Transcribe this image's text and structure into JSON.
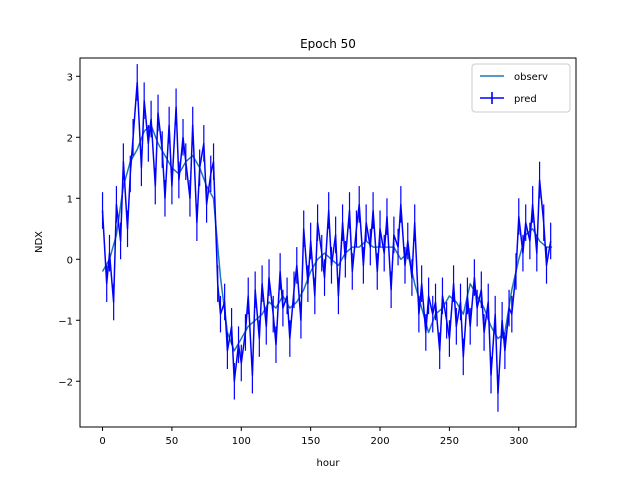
{
  "chart_data": {
    "type": "line",
    "title": "Epoch 50",
    "xlabel": "hour",
    "ylabel": "NDX",
    "xlim": [
      -16.25,
      341.25
    ],
    "ylim": [
      -2.75,
      3.3
    ],
    "xticks": [
      0,
      50,
      100,
      150,
      200,
      250,
      300
    ],
    "yticks": [
      -2,
      -1,
      0,
      1,
      2,
      3
    ],
    "ytick_labels": [
      "−2",
      "−1",
      "0",
      "1",
      "2",
      "3"
    ],
    "grid": false,
    "legend": {
      "placement": "top-right",
      "entries": [
        "observ",
        "pred"
      ]
    },
    "series": [
      {
        "name": "observ",
        "color": "#1f77b4",
        "style": "line",
        "x": [
          0,
          5,
          10,
          15,
          20,
          25,
          30,
          35,
          40,
          45,
          50,
          55,
          60,
          65,
          70,
          75,
          80,
          85,
          90,
          95,
          100,
          105,
          110,
          115,
          120,
          125,
          130,
          135,
          140,
          145,
          150,
          155,
          160,
          165,
          170,
          175,
          180,
          185,
          190,
          195,
          200,
          205,
          210,
          215,
          220,
          225,
          230,
          235,
          240,
          245,
          250,
          255,
          260,
          265,
          270,
          275,
          280,
          285,
          290,
          295,
          300,
          305,
          310,
          315,
          320,
          324
        ],
        "y": [
          -0.2,
          0.0,
          0.4,
          1.2,
          1.6,
          1.8,
          2.1,
          2.2,
          1.9,
          1.7,
          1.5,
          1.4,
          1.6,
          1.7,
          1.5,
          1.2,
          1.0,
          -0.3,
          -1.2,
          -1.5,
          -1.3,
          -1.1,
          -1.0,
          -0.9,
          -0.7,
          -0.8,
          -0.6,
          -0.8,
          -0.7,
          -0.5,
          -0.2,
          0.0,
          0.1,
          0.0,
          -0.1,
          0.1,
          0.2,
          0.2,
          0.3,
          0.2,
          0.2,
          0.2,
          0.2,
          0.0,
          0.1,
          -0.4,
          -0.8,
          -1.2,
          -0.9,
          -0.8,
          -0.6,
          -0.7,
          -0.9,
          -0.4,
          -0.6,
          -0.8,
          -1.1,
          -1.3,
          -1.2,
          -0.5,
          0.0,
          0.4,
          0.5,
          0.3,
          0.2,
          0.2
        ]
      },
      {
        "name": "pred",
        "color": "#0000ff",
        "style": "errorbar-line",
        "x": [
          0,
          3,
          5,
          8,
          10,
          13,
          15,
          18,
          20,
          22,
          25,
          28,
          30,
          33,
          35,
          38,
          40,
          43,
          45,
          48,
          50,
          53,
          55,
          58,
          60,
          63,
          65,
          68,
          70,
          73,
          75,
          78,
          80,
          83,
          85,
          88,
          90,
          93,
          95,
          98,
          100,
          103,
          105,
          108,
          110,
          113,
          115,
          118,
          120,
          123,
          125,
          128,
          130,
          133,
          135,
          138,
          140,
          143,
          145,
          148,
          150,
          153,
          155,
          158,
          160,
          163,
          165,
          168,
          170,
          173,
          175,
          178,
          180,
          183,
          185,
          188,
          190,
          193,
          195,
          198,
          200,
          203,
          205,
          208,
          210,
          213,
          215,
          218,
          220,
          223,
          225,
          228,
          230,
          233,
          235,
          238,
          240,
          243,
          245,
          248,
          250,
          253,
          255,
          258,
          260,
          263,
          265,
          268,
          270,
          273,
          275,
          278,
          280,
          283,
          285,
          288,
          290,
          293,
          295,
          298,
          300,
          303,
          305,
          308,
          310,
          313,
          315,
          318,
          320,
          323
        ],
        "y": [
          0.8,
          -0.4,
          0.1,
          -0.7,
          0.9,
          0.3,
          1.6,
          0.5,
          1.4,
          2.0,
          2.9,
          1.5,
          2.6,
          1.9,
          2.3,
          1.2,
          2.4,
          1.8,
          1.0,
          2.2,
          1.2,
          2.5,
          1.3,
          2.0,
          1.6,
          1.0,
          2.2,
          0.6,
          1.5,
          1.9,
          0.9,
          1.4,
          1.6,
          -0.4,
          -0.9,
          -0.7,
          -1.5,
          -1.1,
          -2.0,
          -1.4,
          -1.7,
          -1.2,
          -0.6,
          -1.9,
          -0.5,
          -1.3,
          -0.4,
          -1.1,
          -0.3,
          -0.9,
          -1.4,
          -0.2,
          -0.8,
          -0.6,
          -1.3,
          -0.5,
          -0.1,
          -1.0,
          0.5,
          -0.4,
          0.3,
          -0.6,
          0.6,
          0.1,
          -0.3,
          0.8,
          -0.1,
          0.4,
          -0.6,
          0.6,
          0.0,
          0.8,
          -0.2,
          0.5,
          0.9,
          -0.1,
          0.6,
          0.2,
          0.8,
          -0.2,
          0.5,
          0.1,
          0.7,
          -0.5,
          0.4,
          0.2,
          0.9,
          -0.1,
          0.3,
          -0.3,
          0.6,
          -0.9,
          -0.4,
          -1.2,
          -0.6,
          -0.9,
          -0.7,
          -1.5,
          -0.6,
          -1.0,
          -1.3,
          -0.4,
          -1.1,
          -0.7,
          -1.6,
          -0.6,
          -1.1,
          -0.3,
          -0.8,
          -0.5,
          -1.2,
          -0.7,
          -1.9,
          -0.9,
          -2.2,
          -1.0,
          -1.5,
          -0.8,
          -0.9,
          -0.2,
          0.7,
          0.1,
          0.6,
          0.3,
          0.9,
          0.1,
          1.3,
          0.6,
          -0.1,
          0.3
        ],
        "err": 0.3
      }
    ]
  }
}
